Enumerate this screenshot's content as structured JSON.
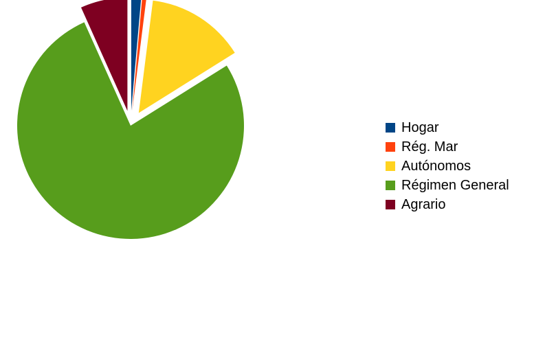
{
  "chart_data": {
    "type": "pie",
    "exploded": true,
    "legend_position": "right",
    "slices": [
      {
        "label": "Hogar",
        "value": 1.4,
        "color": "#004586"
      },
      {
        "label": "Rég. Mar",
        "value": 0.6,
        "color": "#ff420e"
      },
      {
        "label": "Autónomos",
        "value": 14.1,
        "color": "#ffd320"
      },
      {
        "label": "Régimen General",
        "value": 77.2,
        "color": "#579d1c"
      },
      {
        "label": "Agrario",
        "value": 6.7,
        "color": "#7e0021"
      }
    ]
  }
}
